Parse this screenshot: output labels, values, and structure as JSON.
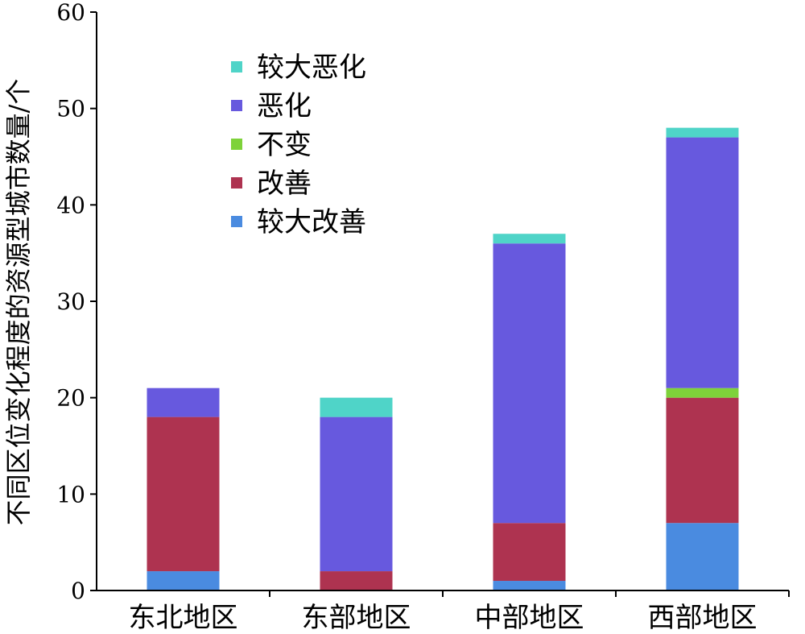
{
  "chart_data": {
    "type": "bar",
    "stacked": true,
    "title": "",
    "xlabel": "",
    "ylabel": "不同区位变化程度的资源型城市数量/个",
    "ylim": [
      0,
      60
    ],
    "yticks": [
      0,
      10,
      20,
      30,
      40,
      50,
      60
    ],
    "grid": false,
    "legend_position": "top-left",
    "categories": [
      "东北地区",
      "东部地区",
      "中部地区",
      "西部地区"
    ],
    "series": [
      {
        "name": "较大改善",
        "color": "#4a8be0",
        "values": [
          2,
          0,
          1,
          7
        ]
      },
      {
        "name": "改善",
        "color": "#ae3350",
        "values": [
          16,
          2,
          6,
          13
        ]
      },
      {
        "name": "不变",
        "color": "#7ed23a",
        "values": [
          0,
          0,
          0,
          1
        ]
      },
      {
        "name": "恶化",
        "color": "#6759de",
        "values": [
          3,
          16,
          29,
          26
        ]
      },
      {
        "name": "较大恶化",
        "color": "#4fd4c8",
        "values": [
          0,
          2,
          1,
          1
        ]
      }
    ],
    "legend_order": [
      "较大恶化",
      "恶化",
      "不变",
      "改善",
      "较大改善"
    ]
  }
}
